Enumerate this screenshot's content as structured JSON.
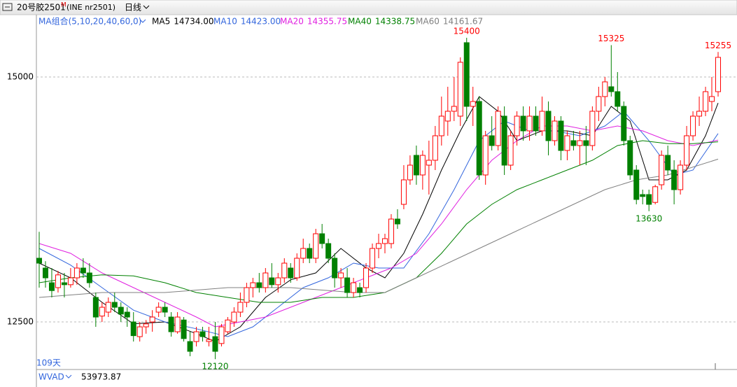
{
  "title_bar": {
    "symbol": "20号胶2501",
    "flag": "M",
    "code": "(INE nr2501)",
    "period": "日线"
  },
  "chart_data": {
    "type": "candlestick",
    "title": "MA组合(5,10,20,40,60,0)",
    "open": [
      13150,
      13050,
      12900,
      12850,
      12900,
      12880,
      12950,
      13050,
      13000,
      12750,
      12560,
      12600,
      12700,
      12650,
      12600,
      12500,
      12350,
      12450,
      12500,
      12600,
      12650,
      12550,
      12400,
      12520,
      12300,
      12300,
      12400,
      12300,
      12350,
      12280,
      12400,
      12500,
      12600,
      12700,
      12850,
      12900,
      12850,
      12950,
      12880,
      12950,
      13050,
      12950,
      13150,
      13250,
      13150,
      13400,
      13300,
      13150,
      12950,
      12950,
      12800,
      12850,
      12850,
      13050,
      13250,
      13300,
      13300,
      13550,
      13700,
      13950,
      14200,
      14000,
      14100,
      14150,
      14400,
      14550,
      14650,
      14600,
      15350,
      14700,
      14750,
      14000,
      14400,
      14300,
      14600,
      14100,
      14400,
      14600,
      14450,
      14600,
      14450,
      14650,
      14350,
      14550,
      14250,
      14350,
      14300,
      14350,
      14300,
      14650,
      14800,
      14900,
      14850,
      14700,
      14350,
      14050,
      13800,
      13800,
      13720,
      13900,
      14200,
      14050,
      13850,
      14100,
      14400,
      14600,
      14650,
      14750,
      14850
    ],
    "high": [
      13420,
      13120,
      13050,
      13020,
      13000,
      13050,
      13100,
      13150,
      13100,
      12800,
      12700,
      12750,
      12800,
      12700,
      12650,
      12600,
      12500,
      12520,
      12620,
      12700,
      12700,
      12600,
      12600,
      12550,
      12400,
      12450,
      12450,
      12450,
      12500,
      12480,
      12550,
      12650,
      12800,
      12900,
      12950,
      13000,
      13050,
      13100,
      13000,
      13150,
      13100,
      13200,
      13350,
      13300,
      13450,
      13500,
      13350,
      13200,
      13050,
      13050,
      12950,
      12900,
      13100,
      13300,
      13400,
      13400,
      13600,
      13650,
      14100,
      14200,
      14300,
      14250,
      14350,
      14500,
      14800,
      14900,
      15000,
      15200,
      15400,
      14900,
      14800,
      14450,
      14600,
      14700,
      14700,
      14450,
      14650,
      14700,
      14700,
      14700,
      14800,
      14750,
      14600,
      14600,
      14450,
      14450,
      14450,
      14500,
      14700,
      14900,
      15000,
      15325,
      15050,
      14750,
      14400,
      14100,
      13850,
      13850,
      13900,
      14250,
      14300,
      14150,
      14150,
      14500,
      14650,
      14800,
      14900,
      15000,
      15255
    ],
    "low": [
      12850,
      12850,
      12750,
      12800,
      12750,
      12850,
      12880,
      12950,
      12850,
      12450,
      12500,
      12550,
      12600,
      12500,
      12450,
      12300,
      12300,
      12380,
      12400,
      12550,
      12550,
      12350,
      12380,
      12300,
      12150,
      12250,
      12300,
      12250,
      12120,
      12250,
      12380,
      12450,
      12550,
      12650,
      12750,
      12800,
      12800,
      12850,
      12800,
      12900,
      12900,
      12920,
      13100,
      13100,
      13100,
      13250,
      13100,
      12850,
      12850,
      12750,
      12750,
      12750,
      12800,
      13000,
      13150,
      13200,
      13250,
      13450,
      13650,
      13900,
      13900,
      13850,
      13800,
      14050,
      14300,
      14400,
      14550,
      14500,
      14550,
      14500,
      13950,
      13900,
      14250,
      14250,
      14000,
      14050,
      14300,
      14350,
      14350,
      14400,
      14400,
      14200,
      14300,
      14150,
      14150,
      14250,
      14100,
      14100,
      14250,
      14550,
      14700,
      14800,
      14650,
      14300,
      13950,
      13700,
      13700,
      13630,
      13700,
      13850,
      14000,
      13700,
      13800,
      14050,
      14350,
      14500,
      14600,
      14650,
      14800
    ],
    "close": [
      13100,
      12950,
      12820,
      12980,
      12880,
      12950,
      13050,
      13000,
      12900,
      12550,
      12650,
      12700,
      12650,
      12580,
      12550,
      12360,
      12450,
      12480,
      12550,
      12650,
      12600,
      12400,
      12550,
      12330,
      12200,
      12400,
      12350,
      12320,
      12200,
      12450,
      12520,
      12600,
      12700,
      12850,
      12900,
      12850,
      13000,
      12880,
      12950,
      13100,
      12950,
      13150,
      13250,
      13150,
      13400,
      13300,
      13150,
      12950,
      13000,
      12800,
      12900,
      12800,
      13050,
      13250,
      13300,
      13350,
      13550,
      13500,
      13950,
      14100,
      14000,
      14200,
      14150,
      14400,
      14600,
      14650,
      14700,
      15150,
      14700,
      14750,
      14000,
      14400,
      14300,
      14650,
      14100,
      14400,
      14600,
      14450,
      14600,
      14450,
      14650,
      14350,
      14550,
      14250,
      14400,
      14300,
      14350,
      14300,
      14650,
      14800,
      14950,
      14850,
      14700,
      14350,
      14000,
      13750,
      13780,
      13700,
      13880,
      14200,
      14050,
      13850,
      14100,
      14400,
      14600,
      14650,
      14850,
      14800,
      15200
    ],
    "up_color": "#ff0000",
    "down_color": "#008000",
    "ylim": [
      12036,
      15514
    ],
    "yticks": [
      12500,
      15000
    ],
    "grid": true,
    "series": [
      {
        "name": "MA5",
        "color": "#000000",
        "value_label": "14734.00",
        "x": [
          0,
          5,
          10,
          15,
          20,
          25,
          28,
          32,
          36,
          40,
          44,
          48,
          52,
          55,
          58,
          61,
          64,
          67,
          70,
          73,
          76,
          80,
          84,
          88,
          91,
          94,
          97,
          100,
          103,
          106,
          108
        ],
        "values": [
          13100,
          12950,
          12700,
          12480,
          12500,
          12380,
          12300,
          12450,
          12750,
          12930,
          13000,
          13250,
          13050,
          12950,
          13200,
          13600,
          14050,
          14450,
          14800,
          14650,
          14350,
          14450,
          14450,
          14400,
          14700,
          14550,
          13950,
          13950,
          14050,
          14400,
          14734
        ]
      },
      {
        "name": "MA10",
        "color": "#3366dd",
        "value_label": "14423.00",
        "x": [
          0,
          5,
          10,
          15,
          20,
          25,
          30,
          34,
          38,
          42,
          46,
          50,
          54,
          58,
          62,
          66,
          70,
          74,
          78,
          82,
          86,
          90,
          93,
          97,
          101,
          104,
          108
        ],
        "values": [
          13250,
          13080,
          12850,
          12620,
          12500,
          12430,
          12350,
          12450,
          12650,
          12850,
          12950,
          13100,
          13050,
          13050,
          13400,
          13850,
          14350,
          14550,
          14450,
          14450,
          14400,
          14500,
          14650,
          14350,
          14000,
          14050,
          14423
        ]
      },
      {
        "name": "MA20",
        "color": "#e020e0",
        "value_label": "14355.75",
        "x": [
          0,
          5,
          10,
          15,
          20,
          25,
          28,
          32,
          36,
          40,
          44,
          48,
          52,
          56,
          60,
          64,
          68,
          72,
          76,
          80,
          84,
          88,
          92,
          96,
          100,
          104,
          108
        ],
        "values": [
          13300,
          13200,
          13000,
          12850,
          12700,
          12550,
          12450,
          12500,
          12550,
          12650,
          12750,
          12850,
          12950,
          13050,
          13200,
          13500,
          13850,
          14150,
          14350,
          14500,
          14500,
          14450,
          14500,
          14450,
          14350,
          14300,
          14355.75
        ]
      },
      {
        "name": "MA40",
        "color": "#008000",
        "value_label": "14338.75",
        "x": [
          0,
          5,
          10,
          15,
          20,
          25,
          30,
          35,
          40,
          45,
          50,
          55,
          60,
          64,
          68,
          72,
          76,
          80,
          84,
          88,
          92,
          96,
          100,
          104,
          108
        ],
        "values": [
          12900,
          12950,
          12980,
          12970,
          12900,
          12800,
          12750,
          12700,
          12700,
          12750,
          12750,
          12800,
          12950,
          13200,
          13500,
          13700,
          13850,
          13950,
          14050,
          14150,
          14300,
          14350,
          14320,
          14320,
          14338.75
        ]
      },
      {
        "name": "MA60",
        "color": "#808080",
        "value_label": "14161.67",
        "x": [
          0,
          10,
          20,
          30,
          40,
          50,
          55,
          60,
          65,
          70,
          75,
          80,
          85,
          90,
          95,
          100,
          108
        ],
        "values": [
          12750,
          12800,
          12800,
          12850,
          12850,
          12800,
          12800,
          12950,
          13100,
          13250,
          13400,
          13550,
          13700,
          13850,
          13950,
          14000,
          14161.67
        ]
      }
    ],
    "annotations": [
      "15400",
      "15325",
      "15255",
      "13630",
      "12120"
    ],
    "period_count": "109天"
  },
  "indicator": {
    "name": "WVAD",
    "value": "53973.87"
  }
}
